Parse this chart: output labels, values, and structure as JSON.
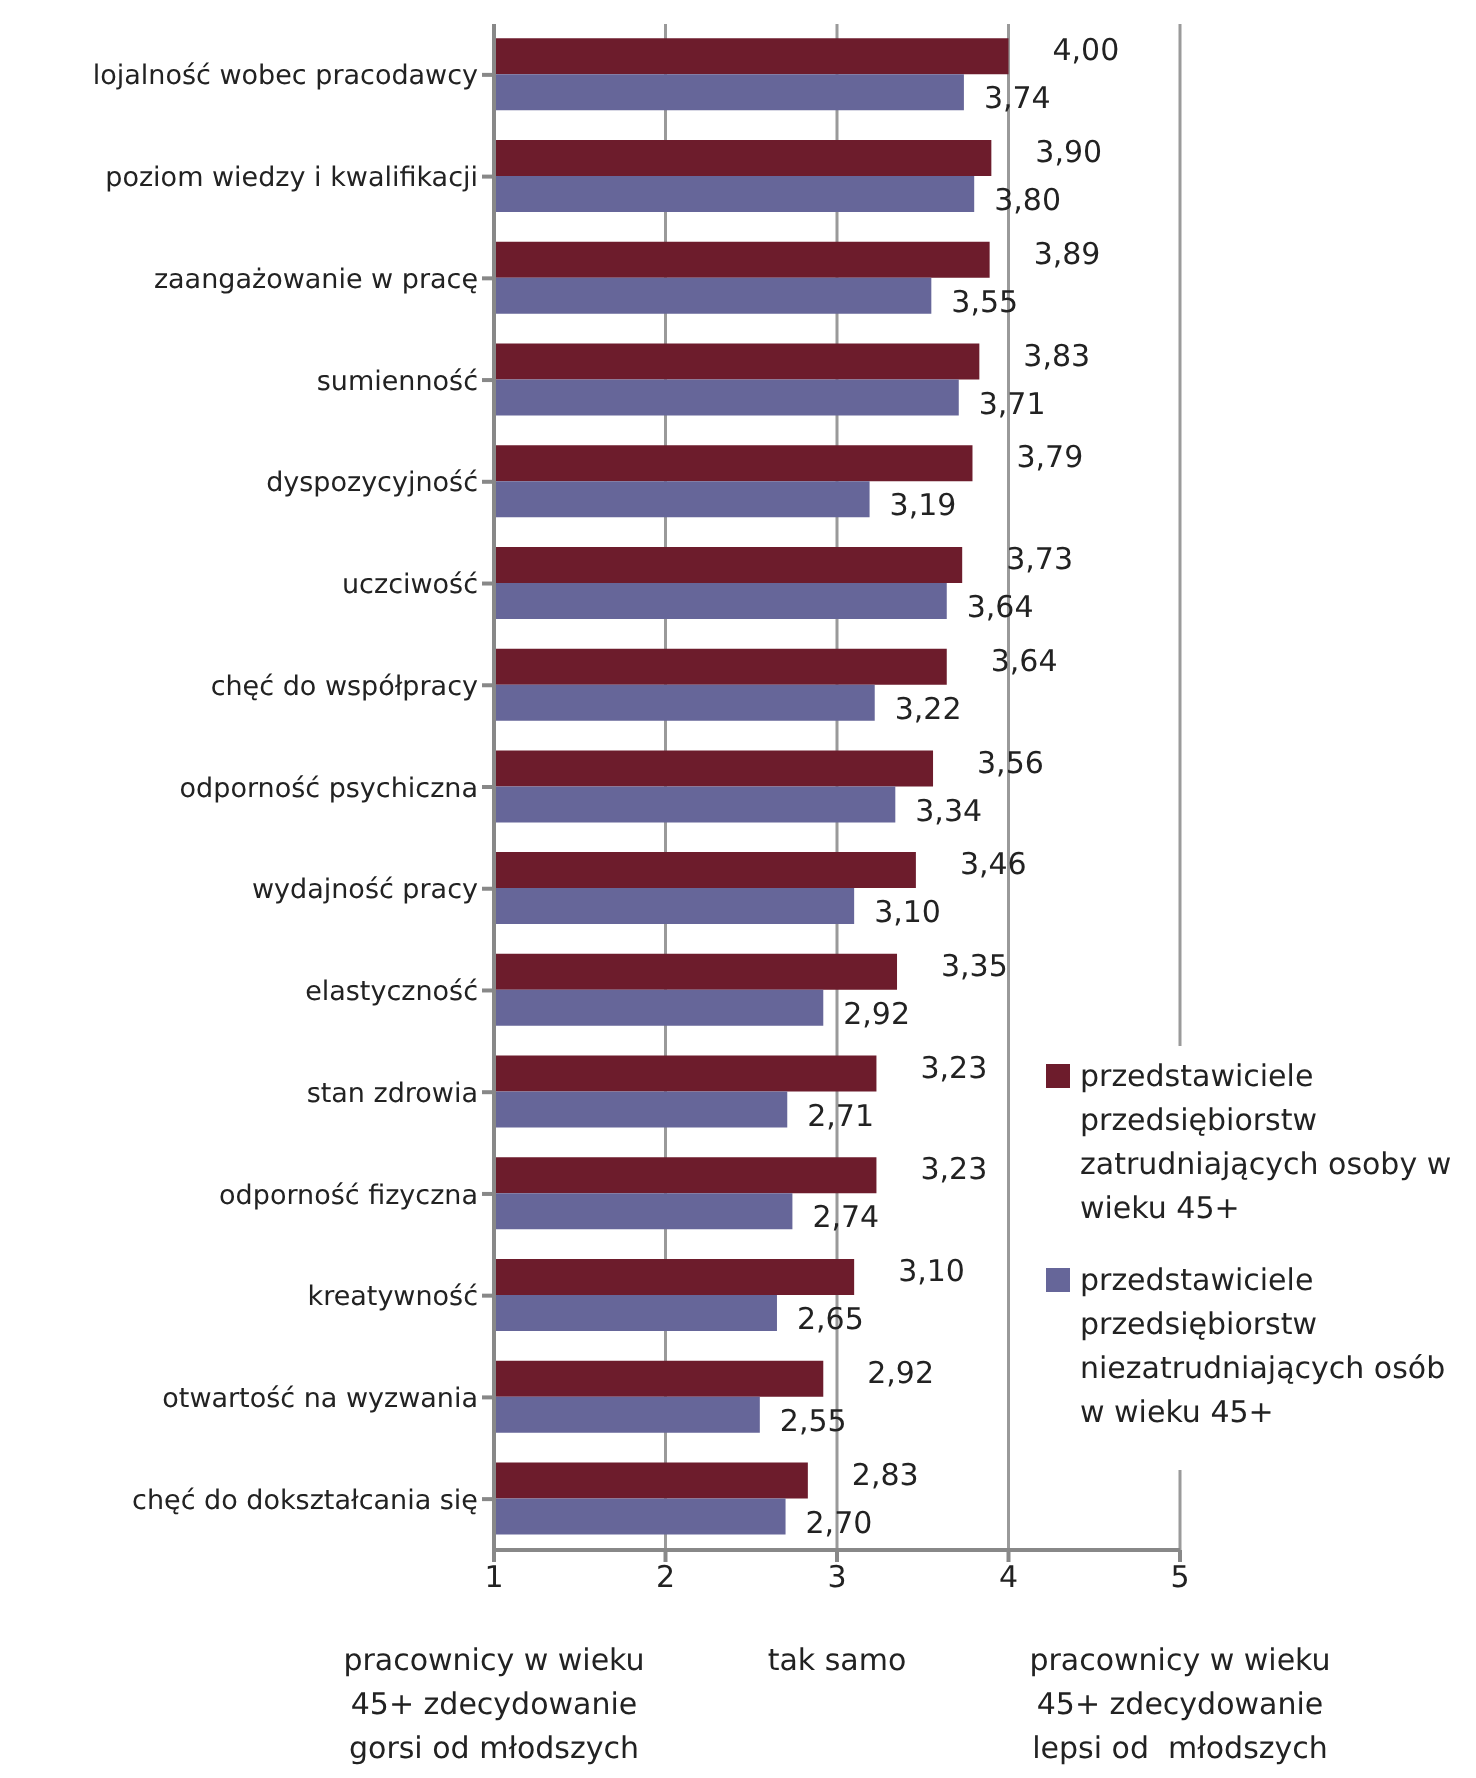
{
  "chart_data": {
    "type": "bar",
    "orientation": "horizontal",
    "categories": [
      "lojalność wobec pracodawcy",
      "poziom wiedzy i kwalifikacji",
      "zaangażowanie w pracę",
      "sumienność",
      "dyspozycyjność",
      "uczciwość",
      "chęć do współpracy",
      "odporność psychiczna",
      "wydajność pracy",
      "elastyczność",
      "stan zdrowia",
      "odporność fizyczna",
      "kreatywność",
      "otwartość na wyzwania",
      "chęć do dokształcania się"
    ],
    "series": [
      {
        "name": "przedstawiciele przedsiębiorstw zatrudniających osoby w wieku 45+",
        "color": "#6d1c2c",
        "values": [
          4.0,
          3.9,
          3.89,
          3.83,
          3.79,
          3.73,
          3.64,
          3.56,
          3.46,
          3.35,
          3.23,
          3.23,
          3.1,
          2.92,
          2.83
        ],
        "value_labels": [
          "4,00",
          "3,90",
          "3,89",
          "3,83",
          "3,79",
          "3,73",
          "3,64",
          "3,56",
          "3,46",
          "3,35",
          "3,23",
          "3,23",
          "3,10",
          "2,92",
          "2,83"
        ]
      },
      {
        "name": "przedstawiciele przedsiębiorstw niezatrudniających osób w wieku 45+",
        "color": "#666699",
        "values": [
          3.74,
          3.8,
          3.55,
          3.71,
          3.19,
          3.64,
          3.22,
          3.34,
          3.1,
          2.92,
          2.71,
          2.74,
          2.65,
          2.55,
          2.7
        ],
        "value_labels": [
          "3,74",
          "3,80",
          "3,55",
          "3,71",
          "3,19",
          "3,64",
          "3,22",
          "3,34",
          "3,10",
          "2,92",
          "2,71",
          "2,74",
          "2,65",
          "2,55",
          "2,70"
        ]
      }
    ],
    "xlim": [
      1,
      5
    ],
    "xticks": [
      1,
      2,
      3,
      4,
      5
    ],
    "grid": "x",
    "legend": "right",
    "annotations": [
      "pracownicy w wieku 45+ zdecydowanie gorsi od młodszych",
      "tak samo",
      "pracownicy w wieku 45+ zdecydowanie lepsi od  młodszych"
    ]
  }
}
